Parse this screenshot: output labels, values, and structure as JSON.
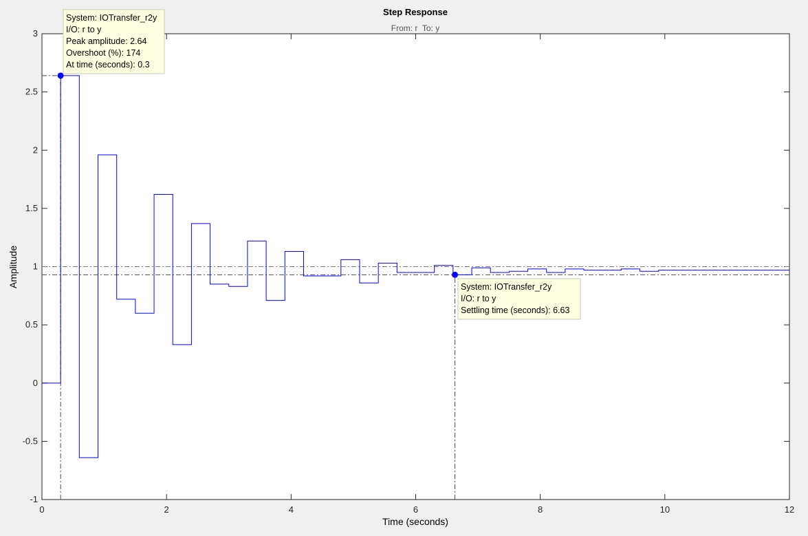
{
  "chart_data": {
    "type": "line",
    "title": "Step Response",
    "subtitle": "From: r  To: y",
    "xlabel": "Time (seconds)",
    "ylabel": "Amplitude",
    "xlim": [
      0,
      12
    ],
    "ylim": [
      -1,
      3
    ],
    "x_ticks": [
      "0",
      "2",
      "4",
      "6",
      "8",
      "10",
      "12"
    ],
    "y_ticks": [
      "-1",
      "-0.5",
      "0",
      "0.5",
      "1",
      "1.5",
      "2",
      "2.5",
      "3"
    ],
    "grid": false,
    "sample_time": 0.3,
    "series": [
      {
        "style": "stairs",
        "color": "#0000ff",
        "x": [
          0,
          0.3,
          0.6,
          0.9,
          1.2,
          1.5,
          1.8,
          2.1,
          2.4,
          2.7,
          3.0,
          3.3,
          3.6,
          3.9,
          4.2,
          4.5,
          4.8,
          5.1,
          5.4,
          5.7,
          6.0,
          6.3,
          6.6,
          6.9,
          7.2,
          7.5,
          7.8,
          8.1,
          8.4,
          8.7,
          9.0,
          9.3,
          9.6,
          9.9,
          10.2,
          10.5,
          10.8,
          11.1,
          11.4,
          11.7
        ],
        "y": [
          0,
          2.64,
          -0.64,
          1.96,
          0.72,
          0.6,
          1.62,
          0.33,
          1.37,
          0.85,
          0.83,
          1.22,
          0.71,
          1.13,
          0.92,
          0.92,
          1.06,
          0.86,
          1.03,
          0.95,
          0.95,
          1.01,
          0.93,
          0.99,
          0.95,
          0.96,
          0.98,
          0.95,
          0.98,
          0.97,
          0.97,
          0.98,
          0.96,
          0.97,
          0.97,
          0.97,
          0.97,
          0.97,
          0.97,
          0.97
        ]
      }
    ],
    "reference_lines": [
      {
        "type": "horizontal",
        "y": 1.0,
        "color": "#7f7f7f",
        "style": "dash-dot"
      },
      {
        "type": "horizontal",
        "y": 0.93,
        "color": "#4d4d4d",
        "style": "dash-dot"
      },
      {
        "type": "horizontal",
        "y": 2.64,
        "x_from": 0,
        "x_to": 0.3,
        "color": "#4d4d4d",
        "style": "dash-dot"
      },
      {
        "type": "vertical",
        "x": 0.3,
        "y_from": -1,
        "y_to": 2.64,
        "color": "#4d4d4d",
        "style": "dash-dot"
      },
      {
        "type": "vertical",
        "x": 6.63,
        "y_from": -1,
        "y_to": 0.93,
        "color": "#4d4d4d",
        "style": "dash-dot"
      }
    ],
    "markers": [
      {
        "x": 0.3,
        "y": 2.64,
        "color": "#0000ff"
      },
      {
        "x": 6.63,
        "y": 0.93,
        "color": "#0000ff"
      }
    ],
    "datatips": [
      {
        "lines": [
          "System: IOTransfer_r2y",
          "I/O: r to y",
          "Peak amplitude: 2.64",
          "Overshoot (%): 174",
          "At time (seconds): 0.3"
        ]
      },
      {
        "lines": [
          "System: IOTransfer_r2y",
          "I/O: r to y",
          "Settling time (seconds): 6.63"
        ]
      }
    ]
  }
}
